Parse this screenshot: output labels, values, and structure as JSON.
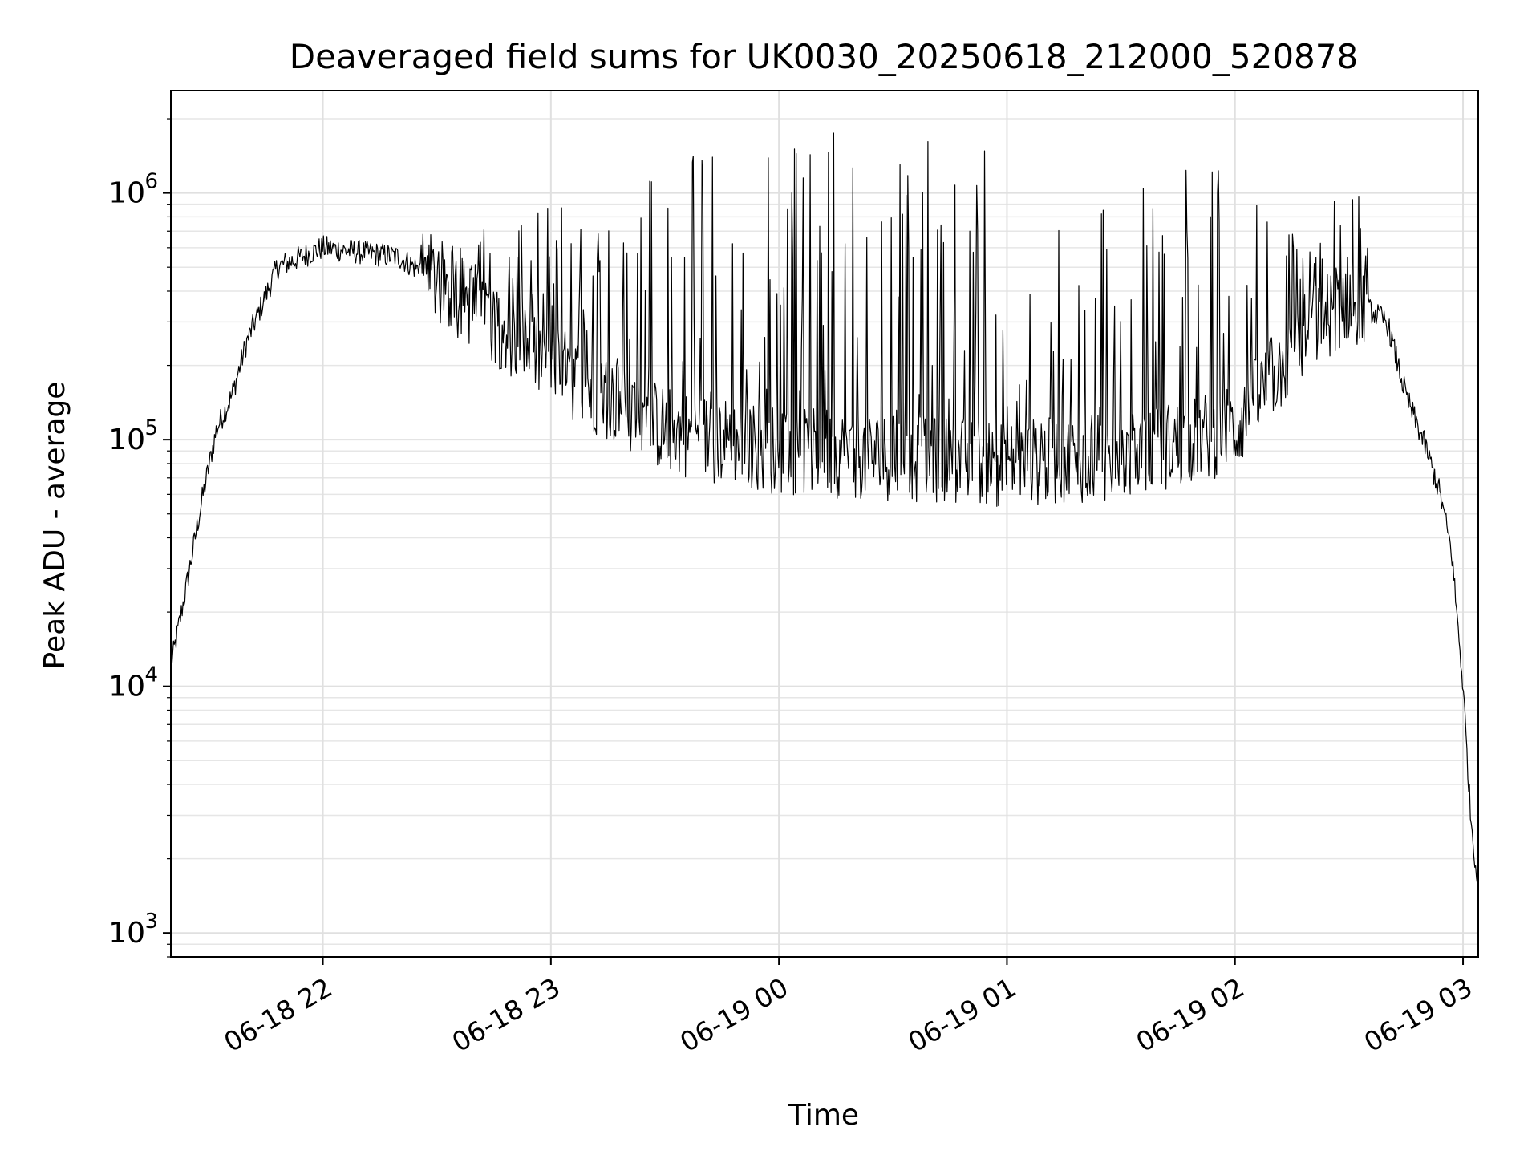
{
  "chart_data": {
    "type": "line",
    "title": "Deaveraged field sums for UK0030_20250618_212000_520878",
    "xlabel": "Time",
    "ylabel": "Peak ADU - average",
    "yscale": "log",
    "ylim": [
      800,
      2600000
    ],
    "xlim": [
      "2025-06-18 21:20",
      "2025-06-19 03:04"
    ],
    "x_ticks": [
      {
        "value": "2025-06-18 22:00",
        "label": "06-18 22"
      },
      {
        "value": "2025-06-18 23:00",
        "label": "06-18 23"
      },
      {
        "value": "2025-06-19 00:00",
        "label": "06-19 00"
      },
      {
        "value": "2025-06-19 01:00",
        "label": "06-19 01"
      },
      {
        "value": "2025-06-19 02:00",
        "label": "06-19 02"
      },
      {
        "value": "2025-06-19 03:00",
        "label": "06-19 03"
      }
    ],
    "y_ticks": [
      {
        "value": 1000,
        "base": "10",
        "exp": "3"
      },
      {
        "value": 10000,
        "base": "10",
        "exp": "4"
      },
      {
        "value": 100000,
        "base": "10",
        "exp": "5"
      },
      {
        "value": 1000000,
        "base": "10",
        "exp": "6"
      }
    ],
    "grid": true,
    "line_color": "#000000",
    "series_envelope": {
      "x": [
        "2025-06-18 21:20",
        "2025-06-18 21:24",
        "2025-06-18 21:28",
        "2025-06-18 21:32",
        "2025-06-18 21:36",
        "2025-06-18 21:40",
        "2025-06-18 21:48",
        "2025-06-18 22:00",
        "2025-06-18 22:20",
        "2025-06-18 22:40",
        "2025-06-18 23:00",
        "2025-06-18 23:30",
        "2025-06-19 00:00",
        "2025-06-19 00:30",
        "2025-06-19 01:00",
        "2025-06-19 01:30",
        "2025-06-19 02:00",
        "2025-06-19 02:10",
        "2025-06-19 02:20",
        "2025-06-19 02:30",
        "2025-06-19 02:40",
        "2025-06-19 02:45",
        "2025-06-19 02:50",
        "2025-06-19 02:54",
        "2025-06-19 02:57",
        "2025-06-19 03:00",
        "2025-06-19 03:02",
        "2025-06-19 03:04"
      ],
      "base": [
        12000,
        25000,
        55000,
        110000,
        150000,
        250000,
        500000,
        600000,
        550000,
        350000,
        200000,
        110000,
        90000,
        85000,
        80000,
        85000,
        110000,
        180000,
        280000,
        380000,
        300000,
        150000,
        95000,
        60000,
        35000,
        10000,
        3000,
        1500
      ],
      "spikes": [
        0,
        0,
        0,
        0,
        0,
        0,
        0,
        0,
        450000,
        700000,
        900000,
        1600000,
        1800000,
        1700000,
        1500000,
        1100000,
        1400000,
        900000,
        600000,
        1350000,
        0,
        600000,
        0,
        0,
        0,
        0,
        0,
        0
      ]
    }
  }
}
